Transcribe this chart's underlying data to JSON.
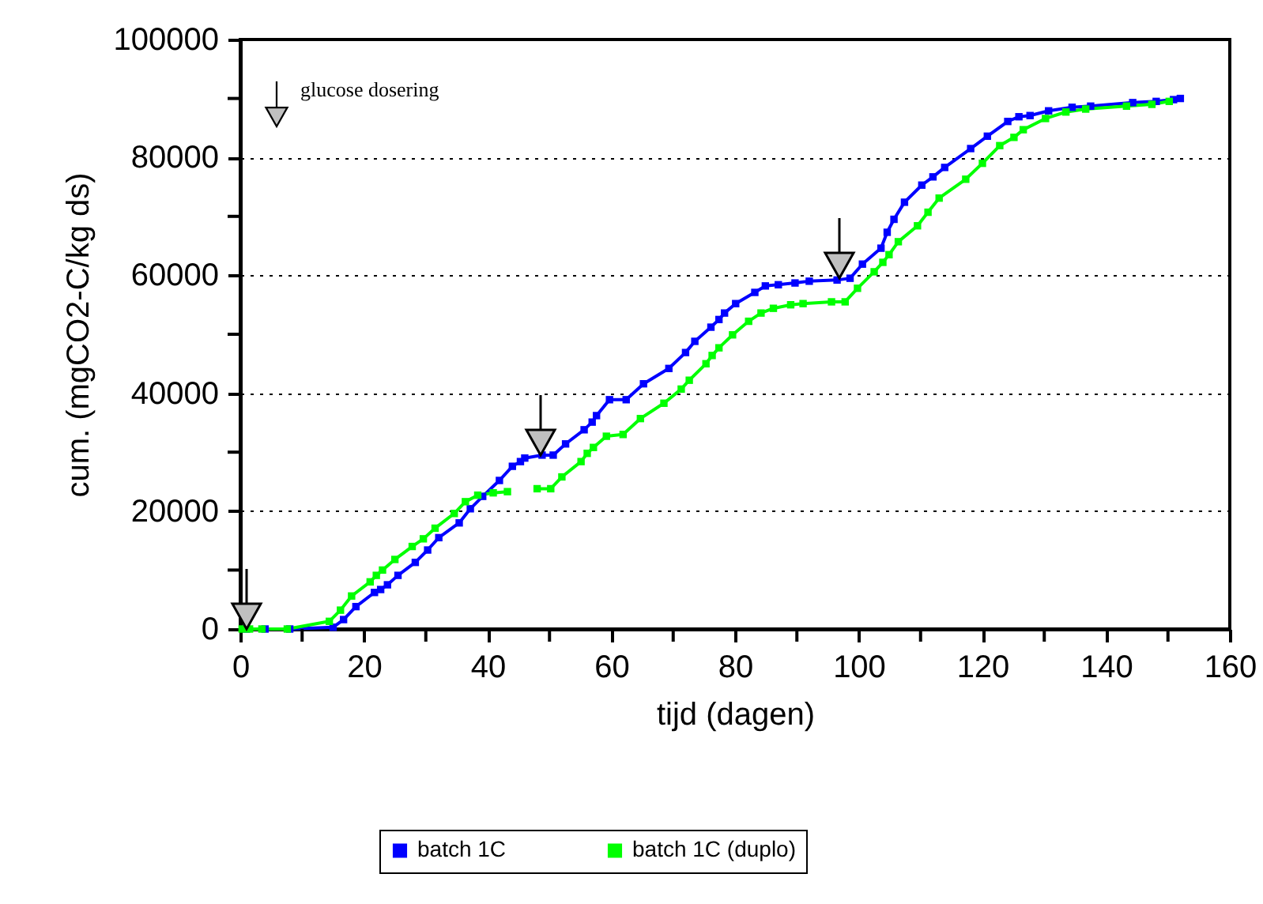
{
  "chart_data": {
    "type": "line",
    "xlabel": "tijd (dagen)",
    "ylabel": "cum. (mgCO2-C/kg ds)",
    "xlim": [
      0,
      160
    ],
    "xticks": [
      0,
      {
        "value": 10,
        "label": null
      },
      20,
      {
        "value": 30,
        "label": null
      },
      40,
      {
        "value": 50,
        "label": null
      },
      60,
      {
        "value": 70,
        "label": null
      },
      80,
      {
        "value": 90,
        "label": null
      },
      100,
      {
        "value": 110,
        "label": null
      },
      120,
      {
        "value": 130,
        "label": null
      },
      140,
      {
        "value": 150,
        "label": null
      },
      160
    ],
    "ylim": [
      0,
      100000
    ],
    "yticks": [
      0,
      {
        "value": 10000,
        "label": null
      },
      20000,
      {
        "value": 30000,
        "label": null
      },
      40000,
      {
        "value": 50000,
        "label": null
      },
      60000,
      {
        "value": 70000,
        "label": null
      },
      80000,
      {
        "value": 90000,
        "label": null
      },
      100000
    ],
    "grid": "y",
    "marker": "square",
    "line_style": "solid",
    "legend": "bottom",
    "annotations": [
      "glucose dosering"
    ],
    "series": [
      {
        "name": "batch 1C",
        "color": "#0000ff",
        "x": [
          1,
          4,
          8,
          15,
          16.7,
          18.7,
          21.7,
          22.7,
          23.8,
          25.5,
          28.3,
          30.3,
          32.1,
          35.4,
          37.2,
          39.2,
          41.9,
          44,
          45.3,
          46,
          48.8,
          50.6,
          52.6,
          55.6,
          56.9,
          57.6,
          59.7,
          62.4,
          65.2,
          69.3,
          72,
          73.5,
          76.1,
          77.4,
          78.3,
          80.1,
          83.2,
          84.9,
          87,
          89.7,
          92,
          96.5,
          98.6,
          100.6,
          103.6,
          104.6,
          105.7,
          107.4,
          110.2,
          112,
          113.9,
          118.1,
          120.8,
          124.1,
          125.9,
          127.7,
          130.7,
          134.5,
          137.5,
          144.3,
          148.1,
          150.9,
          152
        ],
        "values": [
          0,
          0,
          0,
          300,
          1600,
          3800,
          6200,
          6700,
          7500,
          9100,
          11300,
          13400,
          15500,
          18000,
          20400,
          22500,
          25200,
          27600,
          28400,
          29000,
          29500,
          29500,
          31400,
          33800,
          35100,
          36200,
          38900,
          38900,
          41600,
          44200,
          46900,
          48800,
          51200,
          52500,
          53600,
          55200,
          57100,
          58200,
          58400,
          58700,
          59000,
          59200,
          59500,
          61900,
          64600,
          67300,
          69500,
          72400,
          75300,
          76700,
          78300,
          81500,
          83600,
          86100,
          86900,
          87100,
          87900,
          88500,
          88700,
          89300,
          89500,
          89800,
          90000
        ]
      },
      {
        "name": "batch 1C (duplo)",
        "color": "#00ff00",
        "x": [
          0.3,
          1.5,
          3.5,
          7.6,
          14.4,
          16.2,
          18,
          21,
          22,
          23,
          25,
          27.8,
          29.6,
          31.5,
          34.6,
          36.4,
          38.4,
          40.9,
          43.2,
          45.6,
          48,
          50.2,
          52,
          55.1,
          56.1,
          57.1,
          59.2,
          61.9,
          64.7,
          68.5,
          71.3,
          72.6,
          75.3,
          76.3,
          77.4,
          79.6,
          82.2,
          84.2,
          86.2,
          89,
          91,
          95.6,
          97.8,
          99.8,
          102.5,
          103.9,
          104.9,
          106.4,
          109.5,
          111.2,
          113,
          117.3,
          120,
          122.8,
          125.1,
          126.6,
          130.2,
          133.5,
          136.7,
          143.3,
          147.4,
          150.2
        ],
        "values": [
          0,
          0,
          0,
          0,
          1300,
          3200,
          5600,
          8000,
          9100,
          10000,
          11800,
          14000,
          15300,
          17100,
          19600,
          21600,
          22700,
          23100,
          23300,
          null,
          23800,
          23800,
          25800,
          28400,
          29800,
          30800,
          32700,
          33000,
          35700,
          38300,
          40700,
          42200,
          45000,
          46400,
          47700,
          49900,
          52200,
          53600,
          54400,
          55000,
          55200,
          55500,
          55500,
          57800,
          60600,
          62200,
          63500,
          65700,
          68400,
          70700,
          73100,
          76300,
          79000,
          82000,
          83400,
          84700,
          86600,
          87700,
          88200,
          88700,
          89000,
          89500
        ]
      }
    ]
  }
}
